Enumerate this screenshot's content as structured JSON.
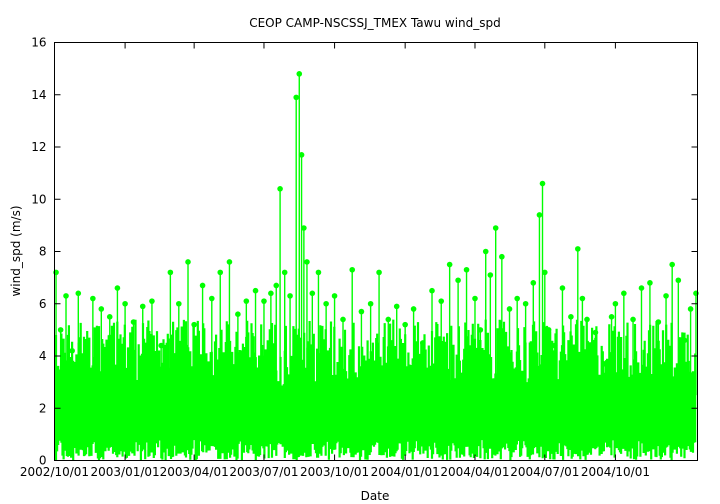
{
  "chart_data": {
    "type": "line",
    "title": "CEOP CAMP-NSCSSJ_TMEX Tawu  wind_spd",
    "xlabel": "Date",
    "ylabel": "wind_spd (m/s)",
    "x_type": "date",
    "xlim": [
      "2002-10-01",
      "2005-01-16"
    ],
    "ylim": [
      0,
      16
    ],
    "y_ticks": [
      0,
      2,
      4,
      6,
      8,
      10,
      12,
      14,
      16
    ],
    "y_tick_labels": [
      "0",
      "2",
      "4",
      "6",
      "8",
      "10",
      "12",
      "14",
      "16"
    ],
    "x_ticks": [
      "2002-10-01",
      "2003-01-01",
      "2003-04-01",
      "2003-07-01",
      "2003-10-01",
      "2004-01-01",
      "2004-04-01",
      "2004-07-01",
      "2004-10-01"
    ],
    "x_tick_labels": [
      "2002/10/01",
      "2003/01/01",
      "2003/04/01",
      "2003/07/01",
      "2003/10/01",
      "2004/01/01",
      "2004/04/01",
      "2004/07/01",
      "2004/10/01"
    ],
    "grid": false,
    "legend": "none",
    "series": [
      {
        "color": "#00ff00",
        "marker": "circle",
        "x": [
          "2002-10-03",
          "2002-10-09",
          "2002-10-16",
          "2002-10-24",
          "2002-11-01",
          "2002-11-10",
          "2002-11-20",
          "2002-12-01",
          "2002-12-12",
          "2002-12-22",
          "2003-01-01",
          "2003-01-12",
          "2003-01-24",
          "2003-02-05",
          "2003-02-17",
          "2003-03-01",
          "2003-03-12",
          "2003-03-24",
          "2003-04-01",
          "2003-04-12",
          "2003-04-24",
          "2003-05-05",
          "2003-05-17",
          "2003-05-28",
          "2003-06-08",
          "2003-06-20",
          "2003-07-01",
          "2003-07-10",
          "2003-07-17",
          "2003-07-22",
          "2003-07-28",
          "2003-08-04",
          "2003-08-12",
          "2003-08-16",
          "2003-08-19",
          "2003-08-22",
          "2003-08-26",
          "2003-09-02",
          "2003-09-10",
          "2003-09-20",
          "2003-10-01",
          "2003-10-12",
          "2003-10-24",
          "2003-11-05",
          "2003-11-17",
          "2003-11-28",
          "2003-12-10",
          "2003-12-21",
          "2004-01-01",
          "2004-01-12",
          "2004-01-24",
          "2004-02-05",
          "2004-02-17",
          "2004-02-28",
          "2004-03-10",
          "2004-03-21",
          "2004-04-01",
          "2004-04-08",
          "2004-04-15",
          "2004-04-21",
          "2004-04-28",
          "2004-05-06",
          "2004-05-16",
          "2004-05-26",
          "2004-06-06",
          "2004-06-16",
          "2004-06-24",
          "2004-06-28",
          "2004-07-01",
          "2004-07-06",
          "2004-07-14",
          "2004-07-24",
          "2004-08-04",
          "2004-08-13",
          "2004-08-19",
          "2004-08-25",
          "2004-09-05",
          "2004-09-16",
          "2004-09-26",
          "2004-10-01",
          "2004-10-12",
          "2004-10-24",
          "2004-11-04",
          "2004-11-15",
          "2004-11-26",
          "2004-12-06",
          "2004-12-14",
          "2004-12-22",
          "2004-12-30",
          "2005-01-07",
          "2005-01-14"
        ],
        "y": [
          7.2,
          5.0,
          6.3,
          4.2,
          6.4,
          4.0,
          6.2,
          5.8,
          5.5,
          6.6,
          6.0,
          5.3,
          5.9,
          6.1,
          4.4,
          7.2,
          6.0,
          7.6,
          5.2,
          6.7,
          6.2,
          7.2,
          7.6,
          5.6,
          6.1,
          6.5,
          6.1,
          6.4,
          6.7,
          10.4,
          7.2,
          6.3,
          13.9,
          14.8,
          11.7,
          8.9,
          7.6,
          6.4,
          7.2,
          6.0,
          6.3,
          5.4,
          7.3,
          5.7,
          6.0,
          7.2,
          5.4,
          5.9,
          5.2,
          5.8,
          4.5,
          6.5,
          6.1,
          7.5,
          6.9,
          7.3,
          6.2,
          5.0,
          8.0,
          7.1,
          8.9,
          7.8,
          5.8,
          6.2,
          6.0,
          6.8,
          9.4,
          10.6,
          7.2,
          5.0,
          4.4,
          6.6,
          5.5,
          8.1,
          6.2,
          5.4,
          4.9,
          3.7,
          5.5,
          6.0,
          6.4,
          5.4,
          6.6,
          6.8,
          5.3,
          6.3,
          7.5,
          6.9,
          4.6,
          5.8,
          6.4
        ]
      }
    ]
  }
}
